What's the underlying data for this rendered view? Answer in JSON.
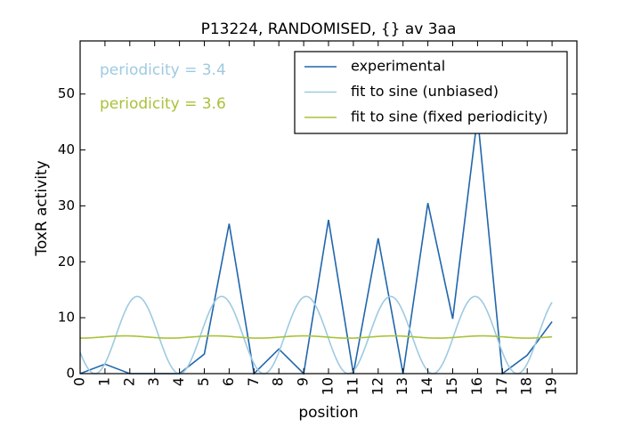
{
  "chart_data": {
    "type": "line",
    "title": "P13224, RANDOMISED, {} av 3aa",
    "xlabel": "position",
    "ylabel": "ToxR activity",
    "xlim": [
      0,
      20
    ],
    "ylim": [
      0,
      59.5
    ],
    "x_ticks": [
      0,
      1,
      2,
      3,
      4,
      5,
      6,
      7,
      8,
      9,
      10,
      11,
      12,
      13,
      14,
      15,
      16,
      17,
      18,
      19
    ],
    "y_ticks": [
      0,
      10,
      20,
      30,
      40,
      50
    ],
    "grid": false,
    "legend_position": "top-right",
    "annotations": [
      {
        "text": "periodicity = 3.4",
        "color": "#9ecae1"
      },
      {
        "text": "periodicity = 3.6",
        "color": "#a8c23a"
      }
    ],
    "series": [
      {
        "name": "experimental",
        "color": "#2166ac",
        "x": [
          0,
          1,
          2,
          3,
          4,
          5,
          6,
          7,
          8,
          9,
          10,
          11,
          12,
          13,
          14,
          15,
          16,
          17,
          18,
          19
        ],
        "values": [
          0,
          1.7,
          0,
          0,
          0,
          3.5,
          26.8,
          0,
          4.4,
          0,
          27.5,
          0,
          24.2,
          0,
          30.5,
          9.8,
          46,
          0,
          3.3,
          9.3
        ]
      },
      {
        "name": "fit to sine (unbiased)",
        "color": "#9ecae1",
        "function": "sine",
        "mean": 6.9,
        "amplitude": 6.9,
        "period": 3.4,
        "peak_x": 2.3
      },
      {
        "name": "fit to sine (fixed periodicity)",
        "color": "#a8c23a",
        "function": "sine",
        "mean": 6.55,
        "amplitude": 0.2,
        "period": 3.6,
        "peak_x": 1.8
      }
    ]
  }
}
